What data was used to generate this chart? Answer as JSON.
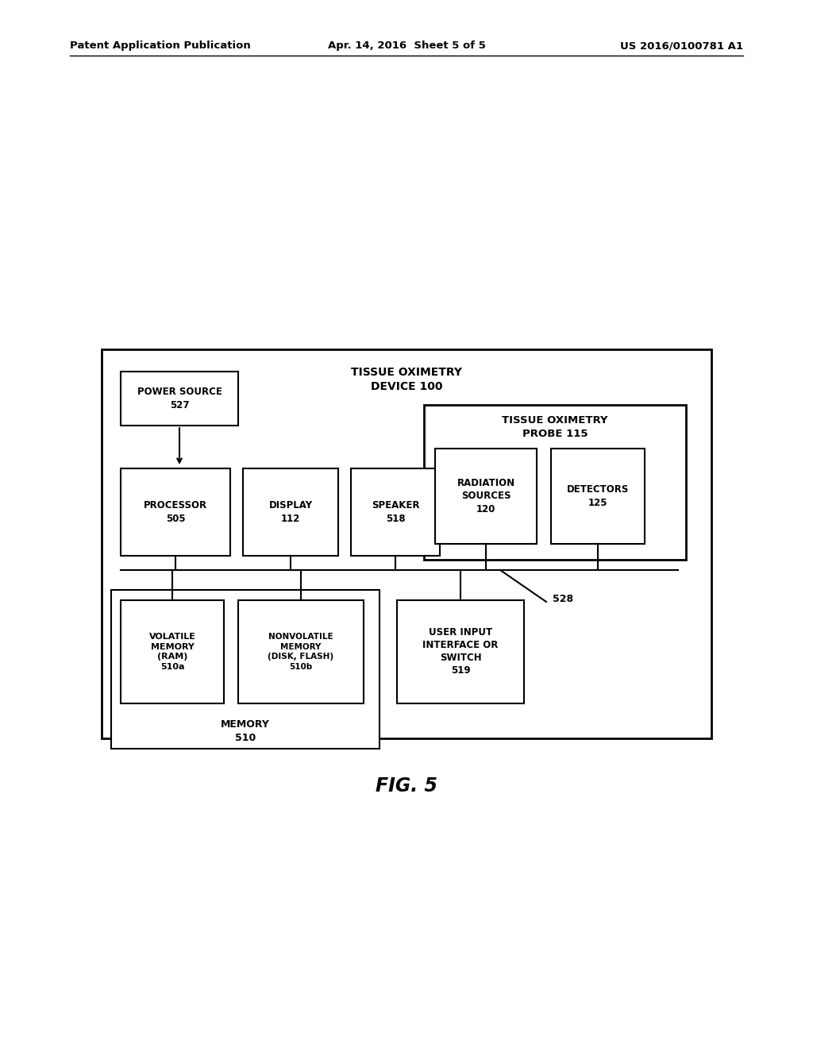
{
  "bg_color": "#ffffff",
  "header_left": "Patent Application Publication",
  "header_center": "Apr. 14, 2016  Sheet 5 of 5",
  "header_right": "US 2016/0100781 A1",
  "fig_label": "FIG. 5",
  "outer_box_label": "TISSUE OXIMETRY\nDEVICE 100",
  "probe_box_label": "TISSUE OXIMETRY\nPROBE 115",
  "memory_label": "MEMORY\n510",
  "label_528": "528",
  "boxes": {
    "power_source": {
      "label": "POWER SOURCE\n527"
    },
    "processor": {
      "label": "PROCESSOR\n505"
    },
    "display": {
      "label": "DISPLAY\n112"
    },
    "speaker": {
      "label": "SPEAKER\n518"
    },
    "radiation": {
      "label": "RADIATION\nSOURCES\n120"
    },
    "detectors": {
      "label": "DETECTORS\n125"
    },
    "volatile": {
      "label": "VOLATILE\nMEMORY\n(RAM)\n510a"
    },
    "nonvolatile": {
      "label": "NONVOLATILE\nMEMORY\n(DISK, FLASH)\n510b"
    },
    "user_input": {
      "label": "USER INPUT\nINTERFACE OR\nSWITCH\n519"
    }
  }
}
